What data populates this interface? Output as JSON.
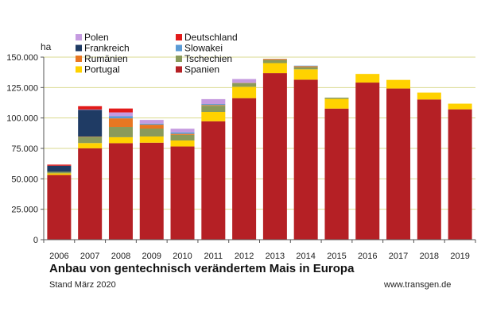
{
  "chart_data": {
    "type": "bar",
    "stacked": true,
    "title": "Anbau von gentechnisch verändertem Mais in Europa",
    "subtitle": "Stand März 2020",
    "source": "www.transgen.de",
    "ylabel": "ha",
    "xlabel": "",
    "ylim": [
      0,
      150000
    ],
    "yticks": [
      "0",
      "25.000",
      "50.000",
      "75.000",
      "100.000",
      "125.000",
      "150.000"
    ],
    "ytick_values": [
      0,
      25000,
      50000,
      75000,
      100000,
      125000,
      150000
    ],
    "grid": "horizontal",
    "legend_position": "top-left",
    "categories": [
      "2006",
      "2007",
      "2008",
      "2009",
      "2010",
      "2011",
      "2012",
      "2013",
      "2014",
      "2015",
      "2016",
      "2017",
      "2018",
      "2019"
    ],
    "series": [
      {
        "name": "Spanien",
        "color": "#b52025",
        "values": [
          53200,
          75100,
          79300,
          79700,
          76600,
          97300,
          116300,
          136900,
          131500,
          107700,
          129100,
          124200,
          115200,
          107100
        ]
      },
      {
        "name": "Portugal",
        "color": "#ffd200",
        "values": [
          1300,
          4300,
          4900,
          5100,
          4900,
          7700,
          9300,
          8200,
          8500,
          8000,
          7100,
          7100,
          5700,
          4700
        ]
      },
      {
        "name": "Tschechien",
        "color": "#8a9a5b",
        "values": [
          1300,
          5000,
          8400,
          6500,
          4700,
          5100,
          3000,
          2600,
          1800,
          1000,
          0,
          0,
          0,
          0
        ]
      },
      {
        "name": "Rumänien",
        "color": "#e87722",
        "values": [
          0,
          300,
          7100,
          3200,
          800,
          600,
          200,
          800,
          800,
          0,
          0,
          0,
          0,
          0
        ]
      },
      {
        "name": "Slowakei",
        "color": "#5b9bd5",
        "values": [
          0,
          0,
          1900,
          900,
          1200,
          800,
          200,
          100,
          400,
          0,
          0,
          0,
          0,
          0
        ]
      },
      {
        "name": "Frankreich",
        "color": "#1f3b64",
        "values": [
          5000,
          22000,
          0,
          0,
          0,
          0,
          0,
          0,
          0,
          0,
          0,
          0,
          0,
          0
        ]
      },
      {
        "name": "Polen",
        "color": "#c59be0",
        "values": [
          0,
          300,
          3000,
          3000,
          3000,
          4000,
          3000,
          0,
          0,
          0,
          0,
          0,
          0,
          0
        ]
      },
      {
        "name": "Deutschland",
        "color": "#e21a1a",
        "values": [
          900,
          2700,
          3200,
          0,
          0,
          0,
          0,
          0,
          0,
          0,
          0,
          0,
          0,
          0
        ]
      }
    ],
    "legend": [
      {
        "name": "Polen",
        "color": "#c59be0"
      },
      {
        "name": "Deutschland",
        "color": "#e21a1a"
      },
      {
        "name": "Frankreich",
        "color": "#1f3b64"
      },
      {
        "name": "Slowakei",
        "color": "#5b9bd5"
      },
      {
        "name": "Rumänien",
        "color": "#e87722"
      },
      {
        "name": "Tschechien",
        "color": "#8a9a5b"
      },
      {
        "name": "Portugal",
        "color": "#ffd200"
      },
      {
        "name": "Spanien",
        "color": "#b52025"
      }
    ]
  }
}
